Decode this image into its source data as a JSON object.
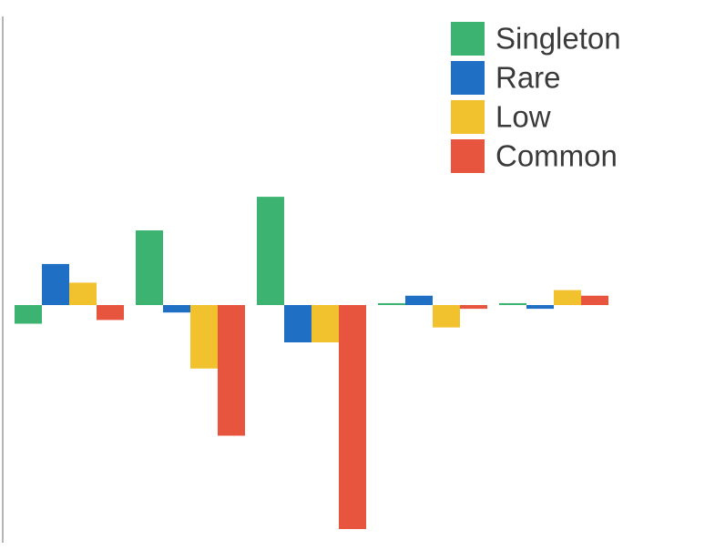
{
  "chart_data": {
    "type": "bar",
    "title": "",
    "xlabel": "",
    "ylabel": "",
    "categories": [
      "",
      "",
      "",
      "",
      ""
    ],
    "ylim": [
      -60,
      32
    ],
    "grid": false,
    "legend_position": "top-right",
    "series": [
      {
        "name": "Singleton",
        "color": "#3cb371",
        "values": [
          -5,
          20,
          29,
          0.5,
          0.5
        ]
      },
      {
        "name": "Rare",
        "color": "#1f6fc5",
        "values": [
          11,
          -2,
          -10,
          2.5,
          -1
        ]
      },
      {
        "name": "Low",
        "color": "#f2c12e",
        "values": [
          6,
          -17,
          -10,
          -6,
          4
        ]
      },
      {
        "name": "Common",
        "color": "#e8553f",
        "values": [
          -4,
          -35,
          -60,
          -1,
          2.5
        ]
      }
    ]
  }
}
